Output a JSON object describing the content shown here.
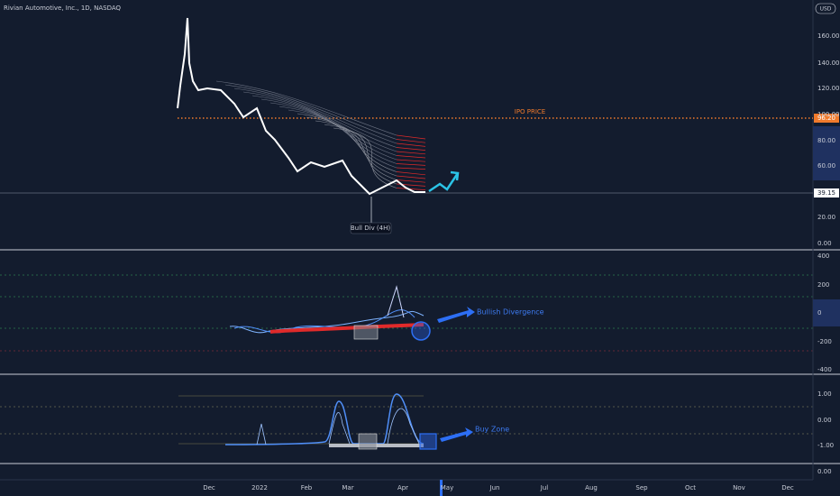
{
  "header": {
    "title": "Rivian Automotive, Inc., 1D, NASDAQ",
    "currency": "USD"
  },
  "price_pane": {
    "axis_labels": [
      "160.00",
      "140.00",
      "120.00",
      "100.00",
      "80.00",
      "60.00",
      "20.00",
      "0.00"
    ],
    "ipo_label": "IPO PRICE",
    "ipo_price": "96.20",
    "last_price": "39.15",
    "annotation": "Bull Div (4H)"
  },
  "oscillator_pane": {
    "axis_labels": [
      "400",
      "200",
      "0",
      "-200",
      "-400"
    ],
    "annotation": "Bullish Divergence"
  },
  "third_pane": {
    "axis_labels": [
      "1.00",
      "0.00",
      "-1.00"
    ],
    "annotation": "Buy Zone"
  },
  "fourth_pane": {
    "axis_labels": [
      "0.00"
    ]
  },
  "time_axis": [
    "Dec",
    "2022",
    "Feb",
    "Mar",
    "Apr",
    "May",
    "Jun",
    "Jul",
    "Aug",
    "Sep",
    "Oct",
    "Nov",
    "Dec"
  ]
}
